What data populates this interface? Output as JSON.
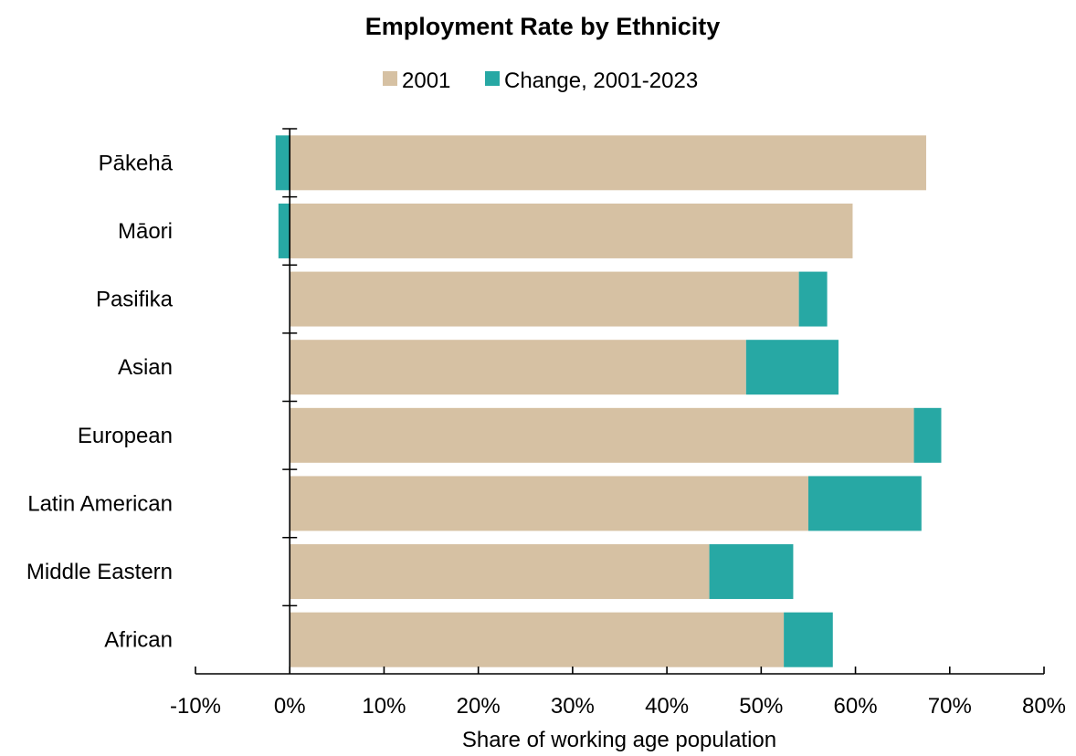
{
  "chart_data": {
    "type": "bar",
    "orientation": "horizontal",
    "stacked": true,
    "title": "Employment Rate by Ethnicity",
    "xlabel": "Share of working age population",
    "ylabel": "",
    "xlim": [
      -10,
      80
    ],
    "x_ticks": [
      -10,
      0,
      10,
      20,
      30,
      40,
      50,
      60,
      70,
      80
    ],
    "x_tick_labels": [
      "-10%",
      "0%",
      "10%",
      "20%",
      "30%",
      "40%",
      "50%",
      "60%",
      "70%",
      "80%"
    ],
    "categories": [
      "Pākehā",
      "Māori",
      "Pasifika",
      "Asian",
      "European",
      "Latin American",
      "Middle Eastern",
      "African"
    ],
    "series": [
      {
        "name": "2001",
        "color": "#d6c1a3",
        "values": [
          67.5,
          59.7,
          54.0,
          48.4,
          66.2,
          55.0,
          44.5,
          52.4
        ]
      },
      {
        "name": "Change, 2001-2023",
        "color": "#27a8a4",
        "values": [
          -1.5,
          -1.2,
          3.0,
          9.8,
          2.9,
          12.0,
          8.9,
          5.2
        ]
      }
    ],
    "legend_position": "top-center",
    "grid": false
  }
}
